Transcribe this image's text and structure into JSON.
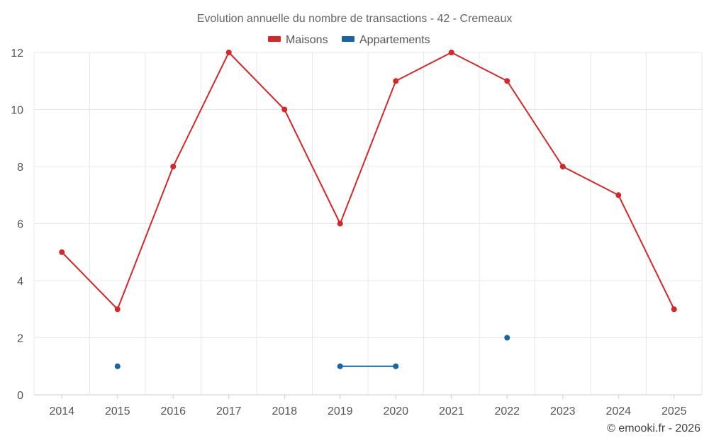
{
  "chart_data": {
    "type": "line",
    "title": "Evolution annuelle du nombre de transactions - 42 - Cremeaux",
    "categories": [
      "2014",
      "2015",
      "2016",
      "2017",
      "2018",
      "2019",
      "2020",
      "2021",
      "2022",
      "2023",
      "2024",
      "2025"
    ],
    "ylim": [
      0,
      12
    ],
    "yticks": [
      0,
      2,
      4,
      6,
      8,
      10,
      12
    ],
    "grid": true,
    "legend_position": "top-center",
    "series": [
      {
        "name": "Maisons",
        "color": "#d62728",
        "values": [
          5,
          3,
          8,
          12,
          10,
          6,
          11,
          12,
          11,
          8,
          7,
          3
        ]
      },
      {
        "name": "Appartements",
        "color": "#1565a7",
        "values": [
          null,
          1,
          null,
          null,
          null,
          1,
          1,
          null,
          2,
          null,
          null,
          null
        ]
      }
    ],
    "credit": "© emooki.fr - 2026"
  }
}
